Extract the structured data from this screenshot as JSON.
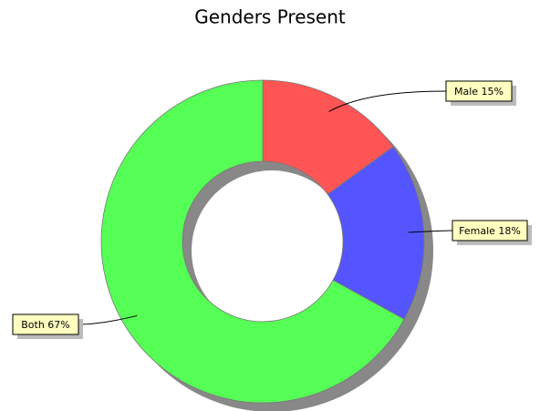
{
  "chart_data": {
    "type": "donut",
    "title": "Genders Present",
    "categories": [
      "Male",
      "Female",
      "Both"
    ],
    "values": [
      15,
      18,
      67
    ],
    "value_labels": [
      "15%",
      "18%",
      "67%"
    ],
    "colors": [
      "#ff5555",
      "#5555ff",
      "#55ff55"
    ]
  }
}
